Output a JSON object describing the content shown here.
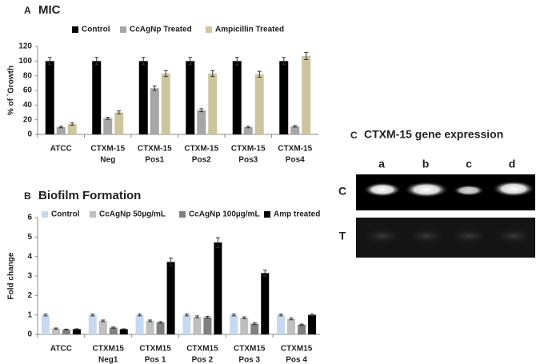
{
  "chart_data": [
    {
      "type": "bar",
      "panel": "A",
      "title": "MIC",
      "y_label": "% of `Growth",
      "categories": [
        [
          "ATCC"
        ],
        [
          "CTXM-15",
          "Neg"
        ],
        [
          "CTXM-15",
          "Pos1"
        ],
        [
          "CTXM-15",
          "Pos2"
        ],
        [
          "CTXM-15",
          "Pos3"
        ],
        [
          "CTXM-15",
          "Pos4"
        ]
      ],
      "series": [
        {
          "name": "Control",
          "color": "#000000",
          "values": [
            100,
            100,
            100,
            100,
            100,
            100
          ],
          "errors": [
            5,
            5,
            5,
            5,
            5,
            5
          ]
        },
        {
          "name": "CcAgNp Treated",
          "color": "#a6a6a6",
          "values": [
            10,
            22,
            63,
            33,
            10,
            11
          ],
          "errors": [
            1,
            1.5,
            3,
            2,
            1,
            1
          ]
        },
        {
          "name": "Ampicillin Treated",
          "color": "#cdc59e",
          "values": [
            14,
            30,
            83,
            83,
            82,
            107
          ],
          "errors": [
            1.5,
            2,
            4,
            4,
            4,
            5
          ]
        }
      ],
      "ylim": [
        0,
        120
      ],
      "yticks": [
        0,
        20,
        40,
        60,
        80,
        100,
        120
      ],
      "grid": false,
      "legend": "top"
    },
    {
      "type": "bar",
      "panel": "B",
      "title": "Biofilm Formation",
      "y_label": "Fold change",
      "categories": [
        [
          "ATCC"
        ],
        [
          "CTXM15",
          "Neg1"
        ],
        [
          "CTXM15",
          "Pos 1"
        ],
        [
          "CTXM15",
          "Pos 2"
        ],
        [
          "CTXM15",
          "Pos 3"
        ],
        [
          "CTXM15",
          "Pos 4"
        ]
      ],
      "series": [
        {
          "name": "Control",
          "color": "#c6d9f1",
          "values": [
            1.0,
            1.0,
            1.0,
            1.0,
            1.0,
            1.0
          ],
          "errors": [
            0.05,
            0.05,
            0.05,
            0.05,
            0.05,
            0.05
          ]
        },
        {
          "name": "CcAgNp 50µg/mL",
          "color": "#bfbfbf",
          "values": [
            0.3,
            0.7,
            0.7,
            0.9,
            0.85,
            0.8
          ],
          "errors": [
            0.03,
            0.04,
            0.04,
            0.05,
            0.05,
            0.05
          ]
        },
        {
          "name": "CcAgNp 100µg/mL",
          "color": "#808080",
          "values": [
            0.25,
            0.35,
            0.62,
            0.88,
            0.55,
            0.5
          ],
          "errors": [
            0.02,
            0.03,
            0.04,
            0.05,
            0.04,
            0.03
          ]
        },
        {
          "name": "Amp treated",
          "color": "#000000",
          "values": [
            0.27,
            0.27,
            3.72,
            4.72,
            3.15,
            1.0
          ],
          "errors": [
            0.02,
            0.02,
            0.2,
            0.25,
            0.15,
            0.05
          ]
        }
      ],
      "ylim": [
        0,
        6
      ],
      "yticks": [
        0,
        1,
        2,
        3,
        4,
        5,
        6
      ],
      "grid": false,
      "legend": "top"
    }
  ],
  "gel": {
    "panel": "C",
    "title": "CTXM-15 gene expression",
    "lanes": [
      "a",
      "b",
      "c",
      "d"
    ],
    "rows": [
      "C",
      "T"
    ]
  }
}
